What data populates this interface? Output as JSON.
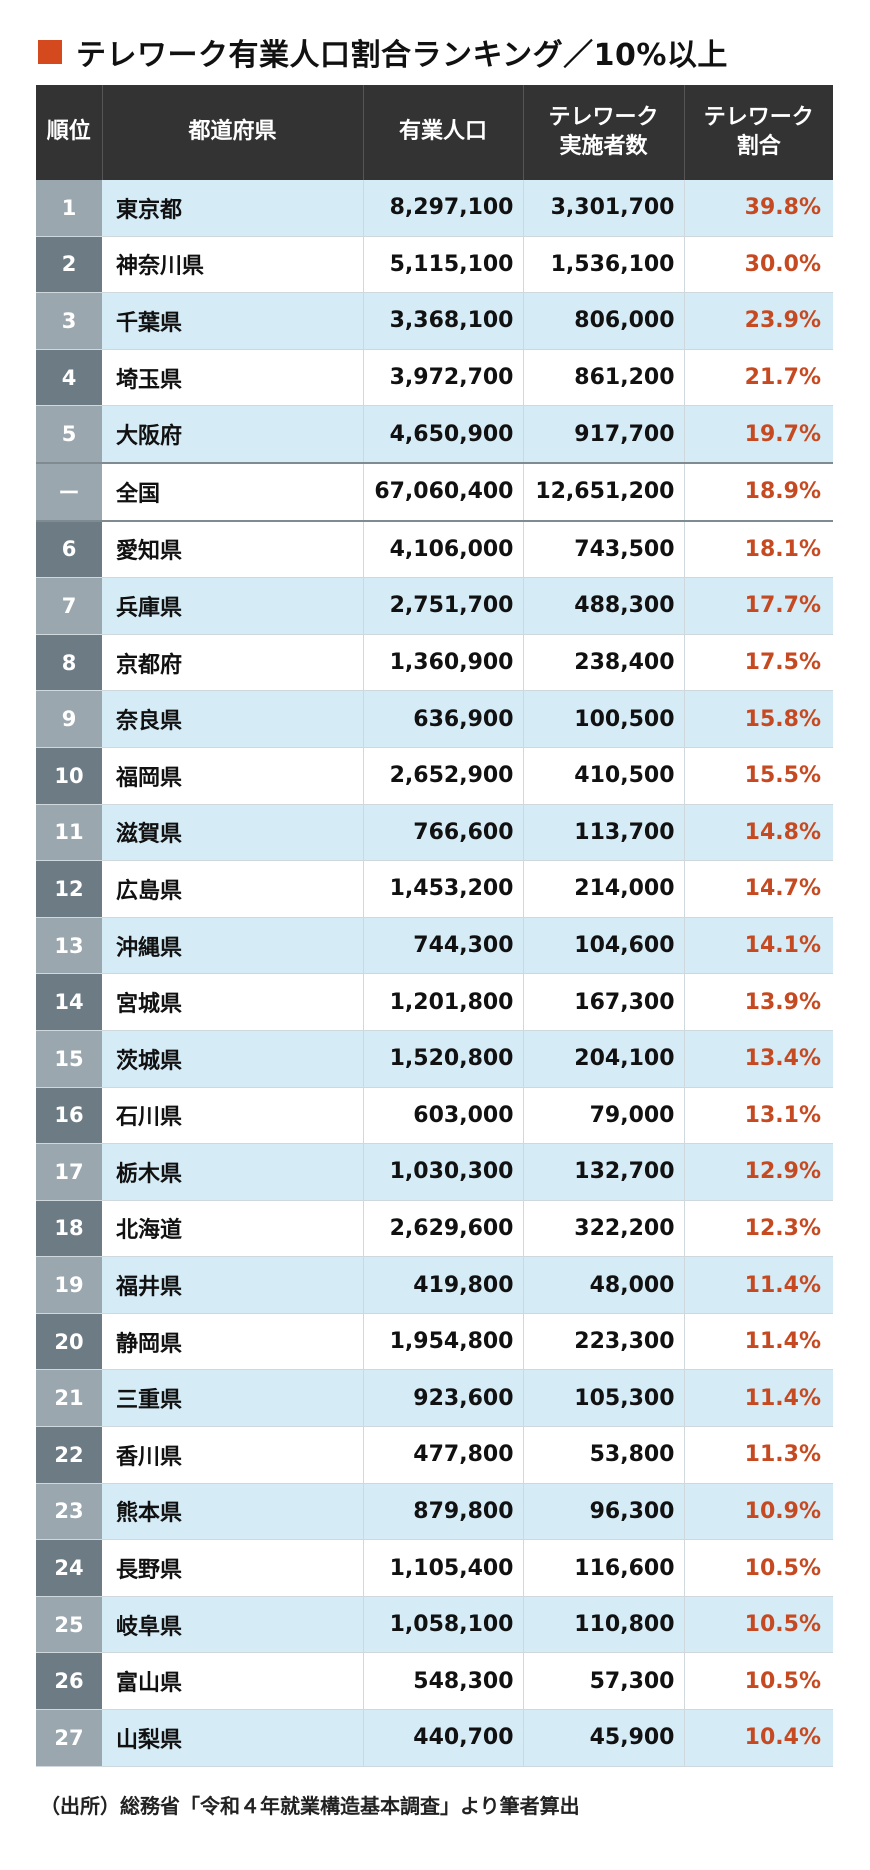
{
  "title": "テレワーク有業人口割合ランキング／10%以上",
  "colors": {
    "accent": "#d5491f",
    "header_bg": "#333333",
    "rate_text": "#c64a21",
    "row_stripe": "#d5ebf6"
  },
  "table": {
    "headers": {
      "rank": "順位",
      "prefecture": "都道府県",
      "employed": "有業人口",
      "telework_1": "テレワーク",
      "telework_2": "実施者数",
      "rate_1": "テレワーク",
      "rate_2": "割合"
    },
    "rows": [
      {
        "rank": "1",
        "pref": "東京都",
        "employed": "8,297,100",
        "telework": "3,301,700",
        "rate": "39.8%"
      },
      {
        "rank": "2",
        "pref": "神奈川県",
        "employed": "5,115,100",
        "telework": "1,536,100",
        "rate": "30.0%"
      },
      {
        "rank": "3",
        "pref": "千葉県",
        "employed": "3,368,100",
        "telework": "806,000",
        "rate": "23.9%"
      },
      {
        "rank": "4",
        "pref": "埼玉県",
        "employed": "3,972,700",
        "telework": "861,200",
        "rate": "21.7%"
      },
      {
        "rank": "5",
        "pref": "大阪府",
        "employed": "4,650,900",
        "telework": "917,700",
        "rate": "19.7%"
      },
      {
        "rank": "ー",
        "pref": "全国",
        "employed": "67,060,400",
        "telework": "12,651,200",
        "rate": "18.9%",
        "national": true
      },
      {
        "rank": "6",
        "pref": "愛知県",
        "employed": "4,106,000",
        "telework": "743,500",
        "rate": "18.1%"
      },
      {
        "rank": "7",
        "pref": "兵庫県",
        "employed": "2,751,700",
        "telework": "488,300",
        "rate": "17.7%"
      },
      {
        "rank": "8",
        "pref": "京都府",
        "employed": "1,360,900",
        "telework": "238,400",
        "rate": "17.5%"
      },
      {
        "rank": "9",
        "pref": "奈良県",
        "employed": "636,900",
        "telework": "100,500",
        "rate": "15.8%"
      },
      {
        "rank": "10",
        "pref": "福岡県",
        "employed": "2,652,900",
        "telework": "410,500",
        "rate": "15.5%"
      },
      {
        "rank": "11",
        "pref": "滋賀県",
        "employed": "766,600",
        "telework": "113,700",
        "rate": "14.8%"
      },
      {
        "rank": "12",
        "pref": "広島県",
        "employed": "1,453,200",
        "telework": "214,000",
        "rate": "14.7%"
      },
      {
        "rank": "13",
        "pref": "沖縄県",
        "employed": "744,300",
        "telework": "104,600",
        "rate": "14.1%"
      },
      {
        "rank": "14",
        "pref": "宮城県",
        "employed": "1,201,800",
        "telework": "167,300",
        "rate": "13.9%"
      },
      {
        "rank": "15",
        "pref": "茨城県",
        "employed": "1,520,800",
        "telework": "204,100",
        "rate": "13.4%"
      },
      {
        "rank": "16",
        "pref": "石川県",
        "employed": "603,000",
        "telework": "79,000",
        "rate": "13.1%"
      },
      {
        "rank": "17",
        "pref": "栃木県",
        "employed": "1,030,300",
        "telework": "132,700",
        "rate": "12.9%"
      },
      {
        "rank": "18",
        "pref": "北海道",
        "employed": "2,629,600",
        "telework": "322,200",
        "rate": "12.3%"
      },
      {
        "rank": "19",
        "pref": "福井県",
        "employed": "419,800",
        "telework": "48,000",
        "rate": "11.4%"
      },
      {
        "rank": "20",
        "pref": "静岡県",
        "employed": "1,954,800",
        "telework": "223,300",
        "rate": "11.4%"
      },
      {
        "rank": "21",
        "pref": "三重県",
        "employed": "923,600",
        "telework": "105,300",
        "rate": "11.4%"
      },
      {
        "rank": "22",
        "pref": "香川県",
        "employed": "477,800",
        "telework": "53,800",
        "rate": "11.3%"
      },
      {
        "rank": "23",
        "pref": "熊本県",
        "employed": "879,800",
        "telework": "96,300",
        "rate": "10.9%"
      },
      {
        "rank": "24",
        "pref": "長野県",
        "employed": "1,105,400",
        "telework": "116,600",
        "rate": "10.5%"
      },
      {
        "rank": "25",
        "pref": "岐阜県",
        "employed": "1,058,100",
        "telework": "110,800",
        "rate": "10.5%"
      },
      {
        "rank": "26",
        "pref": "富山県",
        "employed": "548,300",
        "telework": "57,300",
        "rate": "10.5%"
      },
      {
        "rank": "27",
        "pref": "山梨県",
        "employed": "440,700",
        "telework": "45,900",
        "rate": "10.4%"
      }
    ]
  },
  "source": "（出所）総務省「令和４年就業構造基本調査」より筆者算出"
}
